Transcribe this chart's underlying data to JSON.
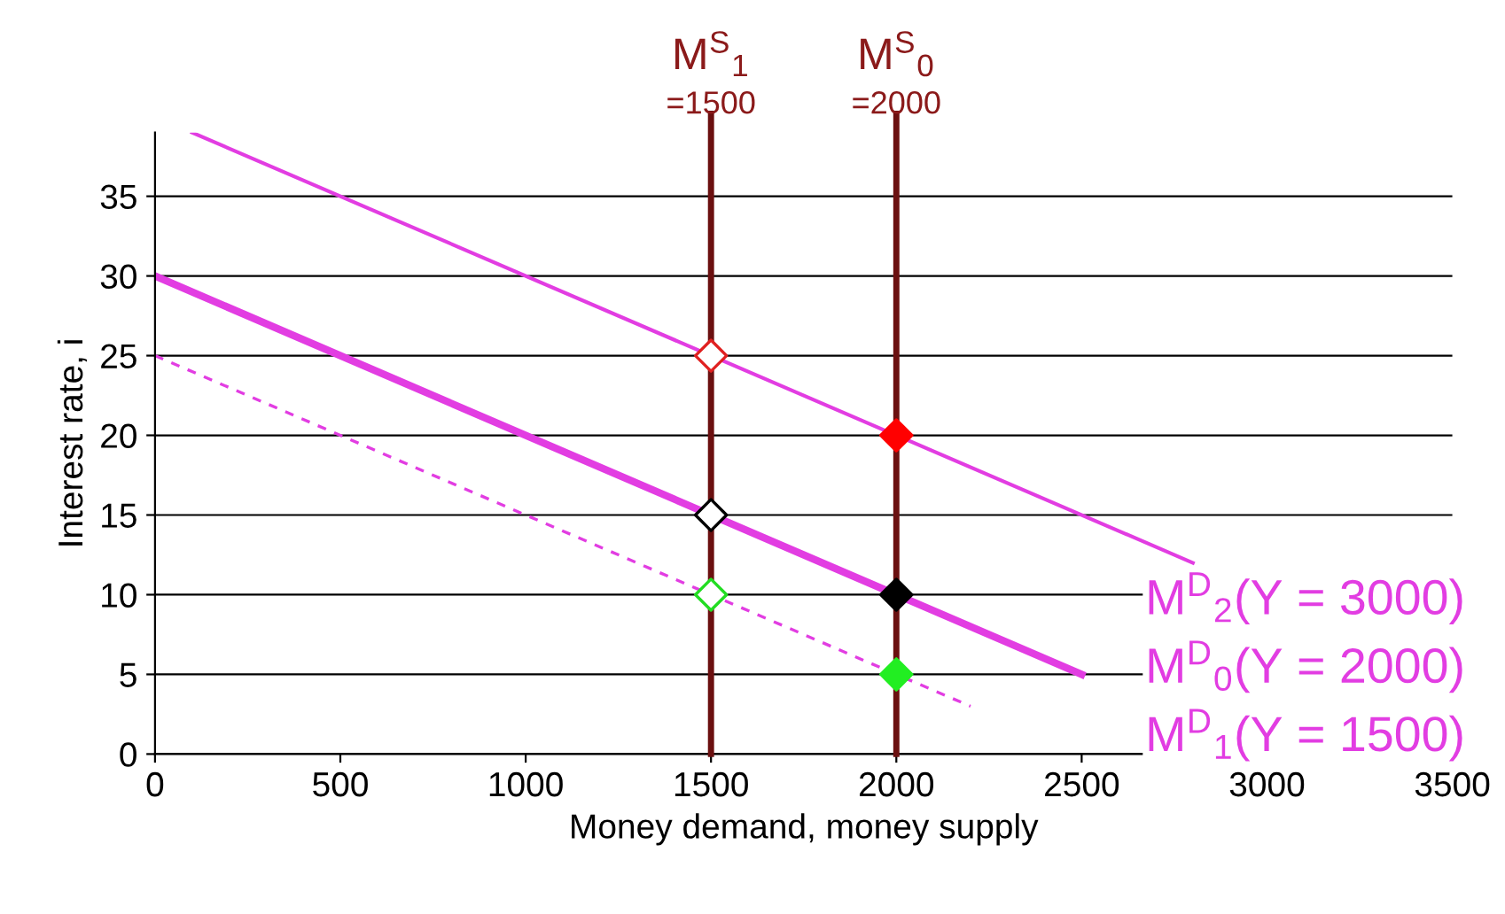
{
  "chart_data": {
    "type": "line",
    "xlabel": "Money demand, money supply",
    "ylabel": "Interest rate, i",
    "xlim": [
      0,
      3500
    ],
    "ylim": [
      0,
      39
    ],
    "xticks": [
      0,
      500,
      1000,
      1500,
      2000,
      2500,
      3000,
      3500
    ],
    "yticks": [
      0,
      5,
      10,
      15,
      20,
      25,
      30,
      35
    ],
    "grid": "y",
    "series": [
      {
        "name": "M$^{D}$$_{2}$(Y = 3000)",
        "color": "#e23de2",
        "x": [
          100,
          2800
        ],
        "values": [
          39,
          12
        ],
        "line_style": "solid"
      },
      {
        "name": "M$^{D}$$_{0}$(Y = 2000)",
        "color": "#e23de2",
        "x": [
          0,
          2500
        ],
        "values": [
          30,
          5
        ],
        "line_style": "solid"
      },
      {
        "name": "M$^{D}$$_{1}$(Y = 1500)",
        "color": "#e23de2",
        "x": [
          0,
          2200
        ],
        "values": [
          25,
          3
        ],
        "line_style": "dashed"
      },
      {
        "type": "scatter",
        "marker": "diamond",
        "colors": [
          "#e02020",
          "#000000",
          "#22dd22"
        ],
        "x": [
          1500,
          1500,
          1500
        ],
        "values": [
          25,
          15,
          10
        ]
      },
      {
        "type": "scatter",
        "marker": "diamond",
        "colors": [
          "#ff0000",
          "#000000",
          "#22ee22"
        ],
        "x": [
          2000,
          2000,
          2000
        ],
        "values": [
          20,
          10,
          5
        ]
      }
    ],
    "ref_lines": [
      {
        "axis": "x",
        "value": 1500,
        "label": "M$^{S}$$_{1}$\n=1500",
        "color": "#6b1010"
      },
      {
        "axis": "x",
        "value": 2000,
        "label": "M$^{S}$$_{0}$\n=2000",
        "color": "#6b1010"
      }
    ]
  }
}
